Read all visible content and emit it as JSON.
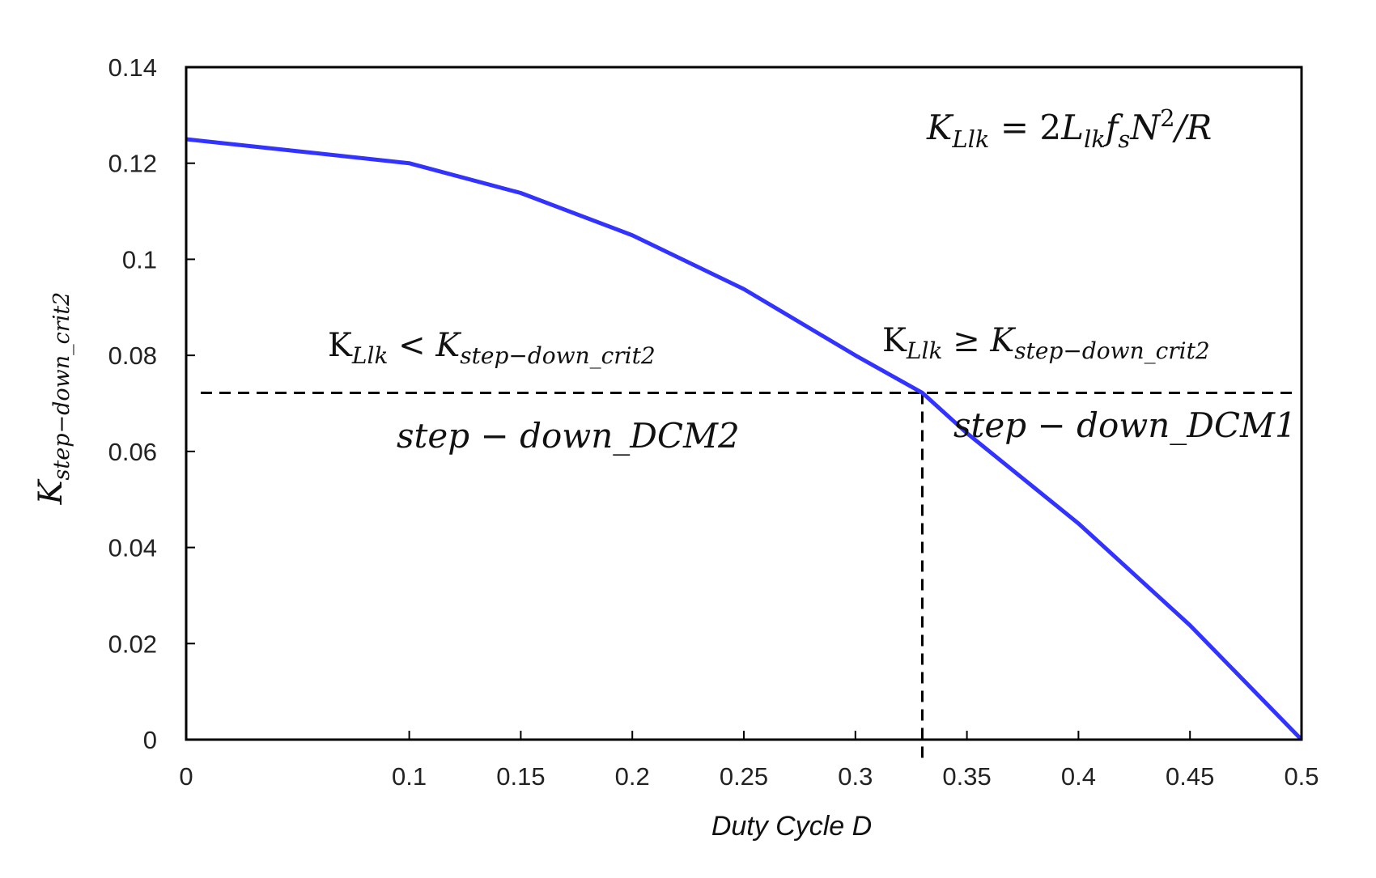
{
  "chart_data": {
    "type": "line",
    "title": "",
    "xlabel": "Duty Cycle D",
    "ylabel": {
      "base": "K",
      "sub": "step−down_crit2"
    },
    "xlim": [
      0,
      0.5
    ],
    "ylim": [
      0,
      0.14
    ],
    "xticks": [
      "0",
      "0.1",
      "0.15",
      "0.2",
      "0.25",
      "0.3",
      "0.35",
      "0.4",
      "0.45",
      "0.5"
    ],
    "yticks": [
      "0",
      "0.02",
      "0.04",
      "0.06",
      "0.08",
      "0.1",
      "0.12",
      "0.14"
    ],
    "grid": false,
    "series": [
      {
        "name": "K_step-down_crit2",
        "color": "#3333ff",
        "x": [
          0,
          0.05,
          0.1,
          0.15,
          0.2,
          0.25,
          0.3,
          0.33,
          0.35,
          0.4,
          0.45,
          0.5
        ],
        "y": [
          0.125,
          0.1225,
          0.12,
          0.1138,
          0.105,
          0.0938,
          0.08,
          0.0722,
          0.0638,
          0.045,
          0.0238,
          0.0
        ]
      }
    ],
    "reference_lines": {
      "horizontal_y": 0.0722,
      "vertical_x": 0.33
    },
    "annotations": {
      "formula": {
        "k": "K",
        "k_sub": "Llk",
        "eq": " = 2",
        "l": "L",
        "l_sub": "lk",
        "f": "f",
        "f_sub": "s",
        "n": "N",
        "n_sup": "2",
        "tail": "/R"
      },
      "region_left": {
        "k": "K",
        "k_sub": "Llk",
        "op": " < ",
        "k2": "K",
        "k2_sub": "step−down_crit2"
      },
      "region_right": {
        "k": "K",
        "k_sub": "Llk",
        "op": " ≥ ",
        "k2": "K",
        "k2_sub": "step−down_crit2"
      },
      "mode_left": "step − down_DCM2",
      "mode_right": "step − down_DCM1"
    }
  }
}
